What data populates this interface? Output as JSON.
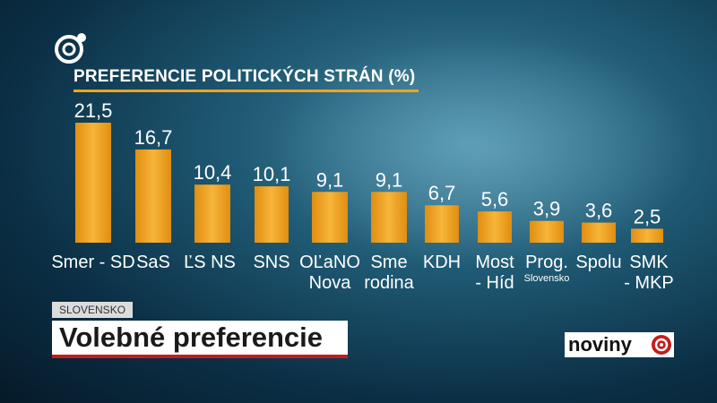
{
  "chart_data": {
    "type": "bar",
    "title": "PREFERENCIE POLITICKÝCH STRÁN (%)",
    "categories": [
      {
        "line1": "Smer - SD",
        "line2": "",
        "sub": ""
      },
      {
        "line1": "SaS",
        "line2": "",
        "sub": ""
      },
      {
        "line1": "ĽS NS",
        "line2": "",
        "sub": ""
      },
      {
        "line1": "SNS",
        "line2": "",
        "sub": ""
      },
      {
        "line1": "OĽaNO",
        "line2": "Nova",
        "sub": ""
      },
      {
        "line1": "Sme",
        "line2": "rodina",
        "sub": ""
      },
      {
        "line1": "KDH",
        "line2": "",
        "sub": ""
      },
      {
        "line1": "Most",
        "line2": "- Híd",
        "sub": ""
      },
      {
        "line1": "Prog.",
        "line2": "",
        "sub": "Slovensko"
      },
      {
        "line1": "Spolu",
        "line2": "",
        "sub": ""
      },
      {
        "line1": "SMK",
        "line2": "- MKP",
        "sub": ""
      }
    ],
    "values": [
      21.5,
      16.7,
      10.4,
      10.1,
      9.1,
      9.1,
      6.7,
      5.6,
      3.9,
      3.6,
      2.5
    ],
    "value_labels": [
      "21,5",
      "16,7",
      "10,4",
      "10,1",
      "9,1",
      "9,1",
      "6,7",
      "5,6",
      "3,9",
      "3,6",
      "2,5"
    ],
    "ylim": [
      0,
      21.5
    ],
    "grid": false,
    "bar_color": "#f2a31b"
  },
  "lower_third": {
    "region": "SLOVENSKO",
    "headline": "Volebné preferencie"
  },
  "brand": {
    "name": "noviny",
    "logo_icon": "joj-logo-icon",
    "accent": "#c61b1b"
  }
}
